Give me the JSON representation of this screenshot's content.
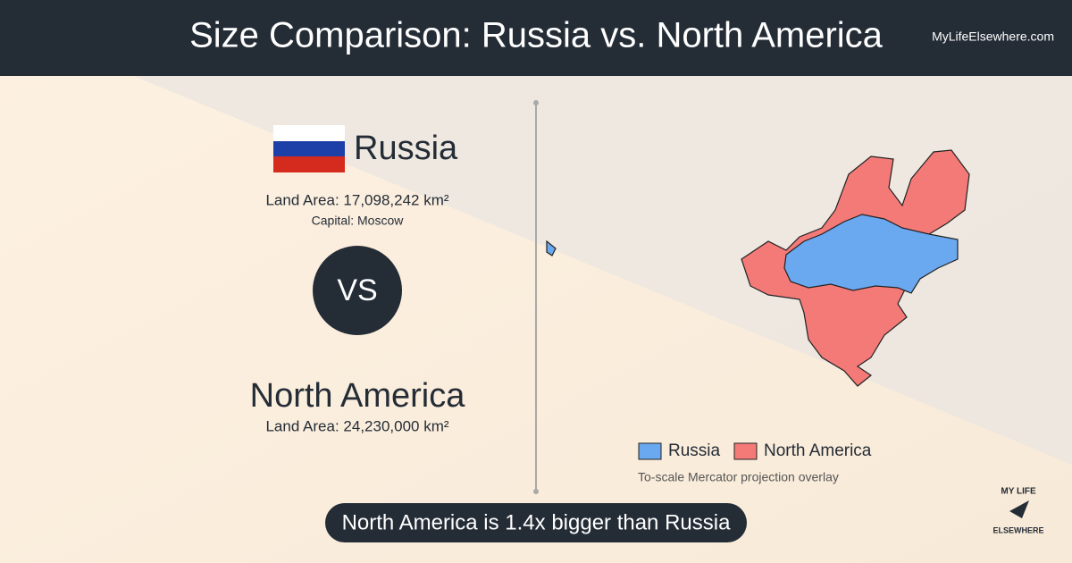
{
  "header": {
    "title": "Size Comparison: Russia vs. North America",
    "site": "MyLifeElsewhere.com"
  },
  "first": {
    "name": "Russia",
    "area": "Land Area: 17,098,242 km²",
    "capital": "Capital: Moscow"
  },
  "versus": "VS",
  "second": {
    "name": "North America",
    "area": "Land Area: 24,230,000 km²"
  },
  "legend": [
    {
      "name": "Russia",
      "color": "#6aa8f0"
    },
    {
      "name": "North America",
      "color": "#f47a78"
    }
  ],
  "map_note": "To-scale Mercator projection overlay",
  "banner": "North America is 1.4x bigger than Russia",
  "logo": {
    "top": "MY LIFE",
    "bottom": "ELSEWHERE"
  }
}
